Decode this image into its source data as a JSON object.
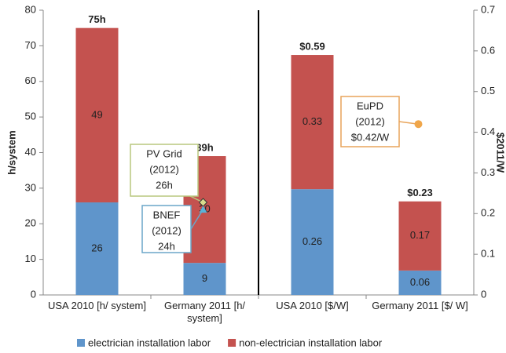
{
  "chart_data": {
    "type": "stacked_bar",
    "categories": [
      "USA 2010 [h/ system]",
      "Germany 2011 [h/ system]",
      "USA 2010 [$/W]",
      "Germany 2011 [$/ W]"
    ],
    "category_axes": [
      "y",
      "y",
      "y2",
      "y2"
    ],
    "series": [
      {
        "name": "electrician installation labor",
        "color": "#5f95cb",
        "values": [
          26,
          9,
          0.26,
          0.06
        ]
      },
      {
        "name": "non-electrician installation labor",
        "color": "#c4524f",
        "values": [
          49,
          30,
          0.33,
          0.17
        ]
      }
    ],
    "totals": [
      75,
      39,
      0.59,
      0.23
    ],
    "totals_value_labels": [
      "75h",
      "39h",
      "$0.59",
      "$0.23"
    ],
    "ylabel": "h/system",
    "y2label": "$2011/W",
    "ylim": [
      0,
      80
    ],
    "yticks": [
      0,
      10,
      20,
      30,
      40,
      50,
      60,
      70,
      80
    ],
    "y2lim": [
      0,
      0.7
    ],
    "y2ticks": [
      0,
      0.1,
      0.2,
      0.3,
      0.4,
      0.5,
      0.6,
      0.7
    ],
    "grid": false,
    "legend": "bottom",
    "annotations": [
      {
        "lines": [
          "PV Grid",
          "(2012)",
          "26h"
        ],
        "category": 1,
        "axis": "y",
        "value": 26,
        "marker": "diamond",
        "color": "#d9dc8c",
        "border": "#b9c77f"
      },
      {
        "lines": [
          "BNEF",
          "(2012)",
          "24h"
        ],
        "category": 1,
        "axis": "y",
        "value": 24,
        "marker": "triangle",
        "color": "#5ab3d9",
        "border": "#6aa6c8"
      },
      {
        "lines": [
          "EuPD",
          "(2012)",
          "$0.42/W"
        ],
        "category": 3,
        "axis": "y2",
        "value": 0.42,
        "marker": "circle",
        "color": "#f0a64a",
        "border": "#e8a45a"
      }
    ]
  }
}
